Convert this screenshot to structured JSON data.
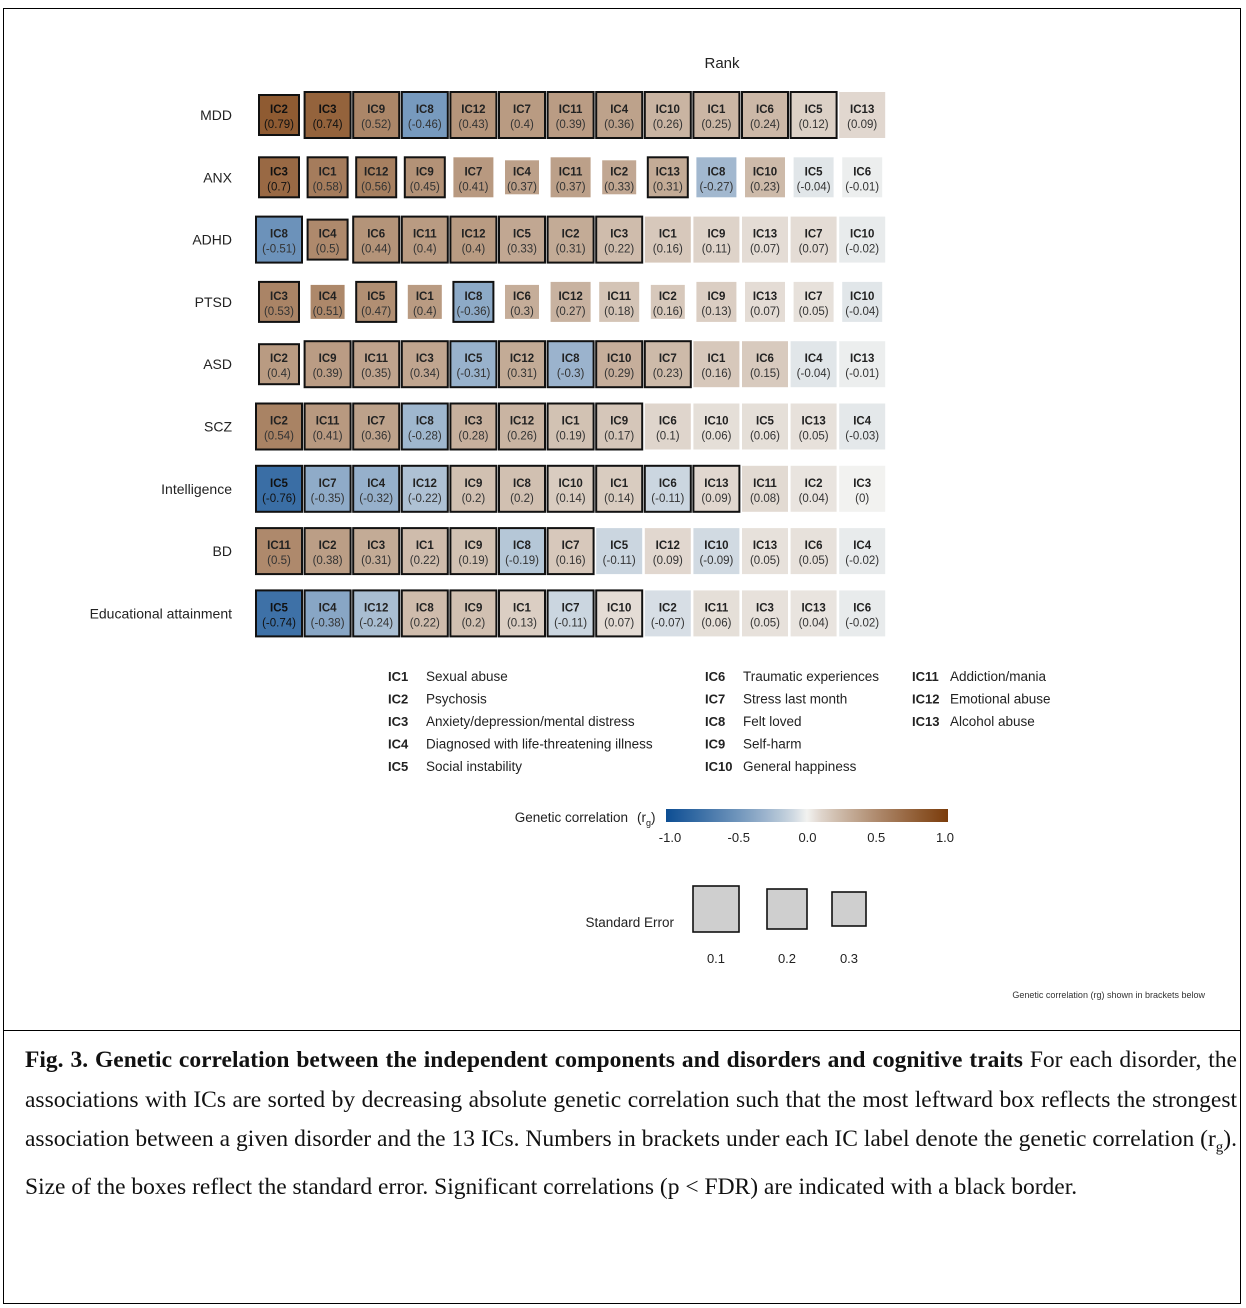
{
  "chart_data": {
    "type": "heatmap",
    "title": "Rank",
    "note": "Genetic correlation (rg) shown in brackets below",
    "rows": [
      {
        "label": "MDD",
        "cells": [
          {
            "ic": "IC2",
            "rg": "0.79",
            "se": 0.2,
            "sig": true
          },
          {
            "ic": "IC3",
            "rg": "0.74",
            "se": 0.1,
            "sig": true
          },
          {
            "ic": "IC9",
            "rg": "0.52",
            "se": 0.1,
            "sig": true
          },
          {
            "ic": "IC8",
            "rg": "-0.46",
            "se": 0.1,
            "sig": true
          },
          {
            "ic": "IC12",
            "rg": "0.43",
            "se": 0.1,
            "sig": true
          },
          {
            "ic": "IC7",
            "rg": "0.4",
            "se": 0.1,
            "sig": true
          },
          {
            "ic": "IC11",
            "rg": "0.39",
            "se": 0.1,
            "sig": true
          },
          {
            "ic": "IC4",
            "rg": "0.36",
            "se": 0.1,
            "sig": true
          },
          {
            "ic": "IC10",
            "rg": "0.26",
            "se": 0.1,
            "sig": true
          },
          {
            "ic": "IC1",
            "rg": "0.25",
            "se": 0.1,
            "sig": true
          },
          {
            "ic": "IC6",
            "rg": "0.24",
            "se": 0.1,
            "sig": true
          },
          {
            "ic": "IC5",
            "rg": "0.12",
            "se": 0.1,
            "sig": true
          },
          {
            "ic": "IC13",
            "rg": "0.09",
            "se": 0.1,
            "sig": false
          }
        ]
      },
      {
        "label": "ANX",
        "cells": [
          {
            "ic": "IC3",
            "rg": "0.7",
            "se": 0.2,
            "sig": true
          },
          {
            "ic": "IC1",
            "rg": "0.58",
            "se": 0.2,
            "sig": true
          },
          {
            "ic": "IC12",
            "rg": "0.56",
            "se": 0.2,
            "sig": true
          },
          {
            "ic": "IC9",
            "rg": "0.45",
            "se": 0.2,
            "sig": true
          },
          {
            "ic": "IC7",
            "rg": "0.41",
            "se": 0.2,
            "sig": false
          },
          {
            "ic": "IC4",
            "rg": "0.37",
            "se": 0.3,
            "sig": false
          },
          {
            "ic": "IC11",
            "rg": "0.37",
            "se": 0.2,
            "sig": false
          },
          {
            "ic": "IC2",
            "rg": "0.33",
            "se": 0.3,
            "sig": false
          },
          {
            "ic": "IC13",
            "rg": "0.31",
            "se": 0.2,
            "sig": true
          },
          {
            "ic": "IC8",
            "rg": "-0.27",
            "se": 0.2,
            "sig": false
          },
          {
            "ic": "IC10",
            "rg": "0.23",
            "se": 0.2,
            "sig": false
          },
          {
            "ic": "IC5",
            "rg": "-0.04",
            "se": 0.2,
            "sig": false
          },
          {
            "ic": "IC6",
            "rg": "-0.01",
            "se": 0.2,
            "sig": false
          }
        ]
      },
      {
        "label": "ADHD",
        "cells": [
          {
            "ic": "IC8",
            "rg": "-0.51",
            "se": 0.1,
            "sig": true
          },
          {
            "ic": "IC4",
            "rg": "0.5",
            "se": 0.2,
            "sig": true
          },
          {
            "ic": "IC6",
            "rg": "0.44",
            "se": 0.1,
            "sig": true
          },
          {
            "ic": "IC11",
            "rg": "0.4",
            "se": 0.1,
            "sig": true
          },
          {
            "ic": "IC12",
            "rg": "0.4",
            "se": 0.1,
            "sig": true
          },
          {
            "ic": "IC5",
            "rg": "0.33",
            "se": 0.1,
            "sig": true
          },
          {
            "ic": "IC2",
            "rg": "0.31",
            "se": 0.1,
            "sig": true
          },
          {
            "ic": "IC3",
            "rg": "0.22",
            "se": 0.1,
            "sig": true
          },
          {
            "ic": "IC1",
            "rg": "0.16",
            "se": 0.1,
            "sig": false
          },
          {
            "ic": "IC9",
            "rg": "0.11",
            "se": 0.1,
            "sig": false
          },
          {
            "ic": "IC13",
            "rg": "0.07",
            "se": 0.1,
            "sig": false
          },
          {
            "ic": "IC7",
            "rg": "0.07",
            "se": 0.1,
            "sig": false
          },
          {
            "ic": "IC10",
            "rg": "-0.02",
            "se": 0.1,
            "sig": false
          }
        ]
      },
      {
        "label": "PTSD",
        "cells": [
          {
            "ic": "IC3",
            "rg": "0.53",
            "se": 0.2,
            "sig": true
          },
          {
            "ic": "IC4",
            "rg": "0.51",
            "se": 0.3,
            "sig": false
          },
          {
            "ic": "IC5",
            "rg": "0.47",
            "se": 0.2,
            "sig": true
          },
          {
            "ic": "IC1",
            "rg": "0.4",
            "se": 0.3,
            "sig": false
          },
          {
            "ic": "IC8",
            "rg": "-0.36",
            "se": 0.2,
            "sig": true
          },
          {
            "ic": "IC6",
            "rg": "0.3",
            "se": 0.3,
            "sig": false
          },
          {
            "ic": "IC12",
            "rg": "0.27",
            "se": 0.2,
            "sig": false
          },
          {
            "ic": "IC11",
            "rg": "0.18",
            "se": 0.2,
            "sig": false
          },
          {
            "ic": "IC2",
            "rg": "0.16",
            "se": 0.3,
            "sig": false
          },
          {
            "ic": "IC9",
            "rg": "0.13",
            "se": 0.2,
            "sig": false
          },
          {
            "ic": "IC13",
            "rg": "0.07",
            "se": 0.2,
            "sig": false
          },
          {
            "ic": "IC7",
            "rg": "0.05",
            "se": 0.2,
            "sig": false
          },
          {
            "ic": "IC10",
            "rg": "-0.04",
            "se": 0.2,
            "sig": false
          }
        ]
      },
      {
        "label": "ASD",
        "cells": [
          {
            "ic": "IC2",
            "rg": "0.4",
            "se": 0.2,
            "sig": true
          },
          {
            "ic": "IC9",
            "rg": "0.39",
            "se": 0.1,
            "sig": true
          },
          {
            "ic": "IC11",
            "rg": "0.35",
            "se": 0.1,
            "sig": true
          },
          {
            "ic": "IC3",
            "rg": "0.34",
            "se": 0.1,
            "sig": true
          },
          {
            "ic": "IC5",
            "rg": "-0.31",
            "se": 0.1,
            "sig": true
          },
          {
            "ic": "IC12",
            "rg": "0.31",
            "se": 0.1,
            "sig": true
          },
          {
            "ic": "IC8",
            "rg": "-0.3",
            "se": 0.1,
            "sig": true
          },
          {
            "ic": "IC10",
            "rg": "0.29",
            "se": 0.1,
            "sig": true
          },
          {
            "ic": "IC7",
            "rg": "0.23",
            "se": 0.1,
            "sig": true
          },
          {
            "ic": "IC1",
            "rg": "0.16",
            "se": 0.1,
            "sig": false
          },
          {
            "ic": "IC6",
            "rg": "0.15",
            "se": 0.1,
            "sig": false
          },
          {
            "ic": "IC4",
            "rg": "-0.04",
            "se": 0.1,
            "sig": false
          },
          {
            "ic": "IC13",
            "rg": "-0.01",
            "se": 0.1,
            "sig": false
          }
        ]
      },
      {
        "label": "SCZ",
        "cells": [
          {
            "ic": "IC2",
            "rg": "0.54",
            "se": 0.1,
            "sig": true
          },
          {
            "ic": "IC11",
            "rg": "0.41",
            "se": 0.1,
            "sig": true
          },
          {
            "ic": "IC7",
            "rg": "0.36",
            "se": 0.1,
            "sig": true
          },
          {
            "ic": "IC8",
            "rg": "-0.28",
            "se": 0.1,
            "sig": true
          },
          {
            "ic": "IC3",
            "rg": "0.28",
            "se": 0.1,
            "sig": true
          },
          {
            "ic": "IC12",
            "rg": "0.26",
            "se": 0.1,
            "sig": true
          },
          {
            "ic": "IC1",
            "rg": "0.19",
            "se": 0.1,
            "sig": true
          },
          {
            "ic": "IC9",
            "rg": "0.17",
            "se": 0.1,
            "sig": true
          },
          {
            "ic": "IC6",
            "rg": "0.1",
            "se": 0.1,
            "sig": false
          },
          {
            "ic": "IC10",
            "rg": "0.06",
            "se": 0.1,
            "sig": false
          },
          {
            "ic": "IC5",
            "rg": "0.06",
            "se": 0.1,
            "sig": false
          },
          {
            "ic": "IC13",
            "rg": "0.05",
            "se": 0.1,
            "sig": false
          },
          {
            "ic": "IC4",
            "rg": "-0.03",
            "se": 0.1,
            "sig": false
          }
        ]
      },
      {
        "label": "Intelligence",
        "cells": [
          {
            "ic": "IC5",
            "rg": "-0.76",
            "se": 0.1,
            "sig": true
          },
          {
            "ic": "IC7",
            "rg": "-0.35",
            "se": 0.1,
            "sig": true
          },
          {
            "ic": "IC4",
            "rg": "-0.32",
            "se": 0.1,
            "sig": true
          },
          {
            "ic": "IC12",
            "rg": "-0.22",
            "se": 0.1,
            "sig": true
          },
          {
            "ic": "IC9",
            "rg": "0.2",
            "se": 0.1,
            "sig": true
          },
          {
            "ic": "IC8",
            "rg": "0.2",
            "se": 0.1,
            "sig": true
          },
          {
            "ic": "IC10",
            "rg": "0.14",
            "se": 0.1,
            "sig": true
          },
          {
            "ic": "IC1",
            "rg": "0.14",
            "se": 0.1,
            "sig": true
          },
          {
            "ic": "IC6",
            "rg": "-0.11",
            "se": 0.1,
            "sig": true
          },
          {
            "ic": "IC13",
            "rg": "0.09",
            "se": 0.1,
            "sig": true
          },
          {
            "ic": "IC11",
            "rg": "0.08",
            "se": 0.1,
            "sig": false
          },
          {
            "ic": "IC2",
            "rg": "0.04",
            "se": 0.1,
            "sig": false
          },
          {
            "ic": "IC3",
            "rg": "0",
            "se": 0.1,
            "sig": false
          }
        ]
      },
      {
        "label": "BD",
        "cells": [
          {
            "ic": "IC11",
            "rg": "0.5",
            "se": 0.1,
            "sig": true
          },
          {
            "ic": "IC2",
            "rg": "0.38",
            "se": 0.1,
            "sig": true
          },
          {
            "ic": "IC3",
            "rg": "0.31",
            "se": 0.1,
            "sig": true
          },
          {
            "ic": "IC1",
            "rg": "0.22",
            "se": 0.1,
            "sig": true
          },
          {
            "ic": "IC9",
            "rg": "0.19",
            "se": 0.1,
            "sig": true
          },
          {
            "ic": "IC8",
            "rg": "-0.19",
            "se": 0.1,
            "sig": true
          },
          {
            "ic": "IC7",
            "rg": "0.16",
            "se": 0.1,
            "sig": true
          },
          {
            "ic": "IC5",
            "rg": "-0.11",
            "se": 0.1,
            "sig": false
          },
          {
            "ic": "IC12",
            "rg": "0.09",
            "se": 0.1,
            "sig": false
          },
          {
            "ic": "IC10",
            "rg": "-0.09",
            "se": 0.1,
            "sig": false
          },
          {
            "ic": "IC13",
            "rg": "0.05",
            "se": 0.1,
            "sig": false
          },
          {
            "ic": "IC6",
            "rg": "0.05",
            "se": 0.1,
            "sig": false
          },
          {
            "ic": "IC4",
            "rg": "-0.02",
            "se": 0.1,
            "sig": false
          }
        ]
      },
      {
        "label": "Educational attainment",
        "cells": [
          {
            "ic": "IC5",
            "rg": "-0.74",
            "se": 0.1,
            "sig": true
          },
          {
            "ic": "IC4",
            "rg": "-0.38",
            "se": 0.1,
            "sig": true
          },
          {
            "ic": "IC12",
            "rg": "-0.24",
            "se": 0.1,
            "sig": true
          },
          {
            "ic": "IC8",
            "rg": "0.22",
            "se": 0.1,
            "sig": true
          },
          {
            "ic": "IC9",
            "rg": "0.2",
            "se": 0.1,
            "sig": true
          },
          {
            "ic": "IC1",
            "rg": "0.13",
            "se": 0.1,
            "sig": true
          },
          {
            "ic": "IC7",
            "rg": "-0.11",
            "se": 0.1,
            "sig": true
          },
          {
            "ic": "IC10",
            "rg": "0.07",
            "se": 0.1,
            "sig": true
          },
          {
            "ic": "IC2",
            "rg": "-0.07",
            "se": 0.1,
            "sig": false
          },
          {
            "ic": "IC11",
            "rg": "0.06",
            "se": 0.1,
            "sig": false
          },
          {
            "ic": "IC3",
            "rg": "0.05",
            "se": 0.1,
            "sig": false
          },
          {
            "ic": "IC13",
            "rg": "0.04",
            "se": 0.1,
            "sig": false
          },
          {
            "ic": "IC6",
            "rg": "-0.02",
            "se": 0.1,
            "sig": false
          }
        ]
      }
    ],
    "ic_legend": [
      {
        "code": "IC1",
        "name": "Sexual abuse"
      },
      {
        "code": "IC2",
        "name": "Psychosis"
      },
      {
        "code": "IC3",
        "name": "Anxiety/depression/mental distress"
      },
      {
        "code": "IC4",
        "name": "Diagnosed with life-threatening illness"
      },
      {
        "code": "IC5",
        "name": "Social instability"
      },
      {
        "code": "IC6",
        "name": "Traumatic experiences"
      },
      {
        "code": "IC7",
        "name": "Stress last month"
      },
      {
        "code": "IC8",
        "name": "Felt loved"
      },
      {
        "code": "IC9",
        "name": "Self-harm"
      },
      {
        "code": "IC10",
        "name": "General happiness"
      },
      {
        "code": "IC11",
        "name": "Addiction/mania"
      },
      {
        "code": "IC12",
        "name": "Emotional abuse"
      },
      {
        "code": "IC13",
        "name": "Alcohol abuse"
      }
    ],
    "colorbar": {
      "label": "Genetic correlation",
      "symbol": "(r",
      "symbol_sub": "g",
      "symbol_end": ")",
      "ticks": [
        "-1.0",
        "-0.5",
        "0.0",
        "0.5",
        "1.0"
      ],
      "range": [
        -1,
        1
      ],
      "colors": {
        "neg": "#0d4e93",
        "mid": "#f2f2f0",
        "pos": "#7b3c0b"
      }
    },
    "size_legend": {
      "label": "Standard Error",
      "values": [
        "0.1",
        "0.2",
        "0.3"
      ]
    }
  },
  "caption": {
    "bold": "Fig. 3. Genetic correlation between the independent components and disorders and cognitive traits",
    "text_1": " For each disorder, the associations with ICs are sorted by decreasing absolute genetic correlation such that the most leftward box reflects the strongest association between a given disorder and the 13 ICs. Numbers in brackets under each IC label denote the genetic correlation (r",
    "sub": "g",
    "text_2": "). Size of the boxes reflect the standard error. Significant correlations (p < FDR) are indicated with a black border."
  }
}
